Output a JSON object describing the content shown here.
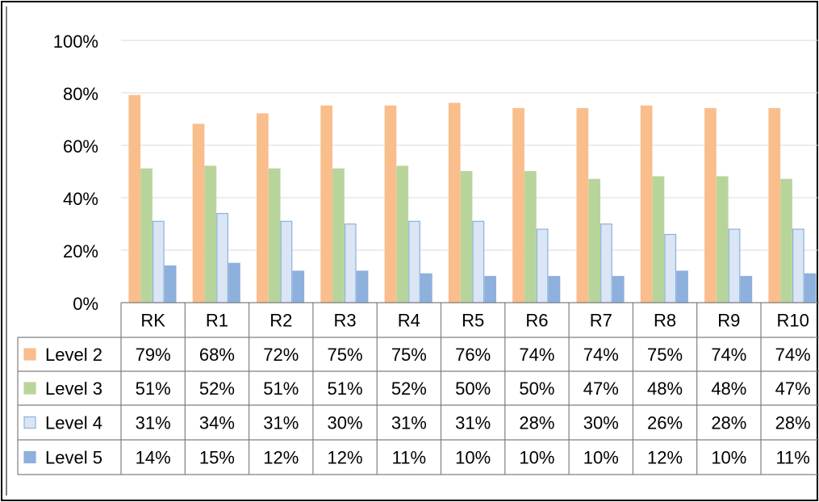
{
  "chart_data": {
    "type": "bar",
    "categories": [
      "RK",
      "R1",
      "R2",
      "R3",
      "R4",
      "R5",
      "R6",
      "R7",
      "R8",
      "R9",
      "R10"
    ],
    "series": [
      {
        "name": "Level 2",
        "values": [
          79,
          68,
          72,
          75,
          75,
          76,
          74,
          74,
          75,
          74,
          74
        ],
        "labels": [
          "79%",
          "68%",
          "72%",
          "75%",
          "75%",
          "76%",
          "74%",
          "74%",
          "75%",
          "74%",
          "74%"
        ],
        "color": "#F9BE8C",
        "border": "#F9BE8C"
      },
      {
        "name": "Level 3",
        "values": [
          51,
          52,
          51,
          51,
          52,
          50,
          50,
          47,
          48,
          48,
          47
        ],
        "labels": [
          "51%",
          "52%",
          "51%",
          "51%",
          "52%",
          "50%",
          "50%",
          "47%",
          "48%",
          "48%",
          "47%"
        ],
        "color": "#B7D59B",
        "border": "#B7D59B"
      },
      {
        "name": "Level 4",
        "values": [
          31,
          34,
          31,
          30,
          31,
          31,
          28,
          30,
          26,
          28,
          28
        ],
        "labels": [
          "31%",
          "34%",
          "31%",
          "30%",
          "31%",
          "31%",
          "28%",
          "30%",
          "26%",
          "28%",
          "28%"
        ],
        "color": "#DAE6F5",
        "border": "#8DB0DC"
      },
      {
        "name": "Level 5",
        "values": [
          14,
          15,
          12,
          12,
          11,
          10,
          10,
          10,
          12,
          10,
          11
        ],
        "labels": [
          "14%",
          "15%",
          "12%",
          "12%",
          "11%",
          "10%",
          "10%",
          "10%",
          "12%",
          "10%",
          "11%"
        ],
        "color": "#8DB0DC",
        "border": "#8DB0DC"
      }
    ],
    "y_ticks": [
      "0%",
      "20%",
      "40%",
      "60%",
      "80%",
      "100%"
    ],
    "ylim": [
      0,
      100
    ],
    "grid": true,
    "data_table": true,
    "gridline_color": "#D9D9D9",
    "table_border_color": "#7F7F7F"
  }
}
